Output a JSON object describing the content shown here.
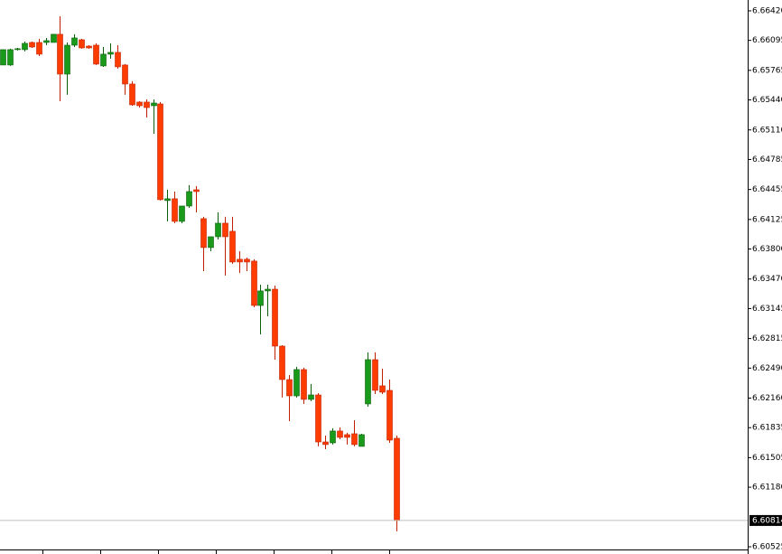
{
  "chart_data": {
    "type": "candlestick",
    "open": [
      6.65824,
      6.65824,
      6.65993,
      6.65993,
      6.66072,
      6.66072,
      6.66072,
      6.66072,
      6.66162,
      6.65724,
      6.66042,
      6.66102,
      6.66032,
      6.66042,
      6.65814,
      6.65943,
      6.65963,
      6.65824,
      6.65615,
      6.65416,
      6.65416,
      6.65376,
      6.65396,
      6.64333,
      6.64353,
      6.64104,
      6.64273,
      6.64452,
      6.64134,
      6.63816,
      6.63935,
      6.64084,
      6.63995,
      6.63687,
      6.63687,
      6.63667,
      6.63179,
      6.63339,
      6.63358,
      6.62732,
      6.62364,
      6.62185,
      6.62474,
      6.62146,
      6.62195,
      6.61678,
      6.61668,
      6.61798,
      6.61758,
      6.61768,
      6.61629,
      6.62096,
      6.62583,
      6.62295,
      6.62245,
      6.61718
    ],
    "high": [
      6.65993,
      6.66003,
      6.66012,
      6.66082,
      6.66082,
      6.66112,
      6.66122,
      6.66162,
      6.6636,
      6.66072,
      6.66162,
      6.66112,
      6.66042,
      6.66062,
      6.66022,
      6.66062,
      6.66042,
      6.65834,
      6.65645,
      6.65426,
      6.65446,
      6.65446,
      6.65416,
      6.64452,
      6.64432,
      6.64273,
      6.64502,
      6.64492,
      6.64154,
      6.63935,
      6.64203,
      6.64154,
      6.64154,
      6.63776,
      6.63706,
      6.63687,
      6.63408,
      6.63408,
      6.63398,
      6.62742,
      6.62414,
      6.62504,
      6.62494,
      6.62315,
      6.62215,
      6.61748,
      6.61828,
      6.61838,
      6.61778,
      6.61917,
      6.61768,
      6.62663,
      6.62663,
      6.62484,
      6.62364,
      6.61748
    ],
    "low": [
      6.65824,
      6.65814,
      6.65983,
      6.65973,
      6.66012,
      6.65923,
      6.66042,
      6.66072,
      6.65426,
      6.65496,
      6.66022,
      6.66003,
      6.66003,
      6.65824,
      6.65804,
      6.65893,
      6.65784,
      6.65496,
      6.65376,
      6.65356,
      6.65247,
      6.65068,
      6.64333,
      6.64104,
      6.64084,
      6.64084,
      6.64253,
      6.64203,
      6.63557,
      6.63776,
      6.63905,
      6.63508,
      6.63637,
      6.63537,
      6.63557,
      6.63159,
      6.62861,
      6.6306,
      6.62583,
      6.62166,
      6.61907,
      6.62166,
      6.62096,
      6.62126,
      6.61629,
      6.61599,
      6.61649,
      6.61708,
      6.61649,
      6.61629,
      6.61629,
      6.62066,
      6.62205,
      6.62205,
      6.61668,
      6.60695
    ],
    "close": [
      6.65993,
      6.65993,
      6.66003,
      6.66062,
      6.66022,
      6.65943,
      6.66092,
      6.66162,
      6.65724,
      6.66042,
      6.66122,
      6.66012,
      6.66012,
      6.65834,
      6.65943,
      6.65963,
      6.65804,
      6.65615,
      6.65386,
      6.65376,
      6.65356,
      6.65406,
      6.64343,
      6.64353,
      6.64104,
      6.64273,
      6.64432,
      6.64432,
      6.63816,
      6.63935,
      6.64084,
      6.63935,
      6.63657,
      6.63657,
      6.63657,
      6.63179,
      6.63339,
      6.63358,
      6.62732,
      6.62364,
      6.62185,
      6.62474,
      6.62146,
      6.62195,
      6.61678,
      6.61649,
      6.61798,
      6.61728,
      6.61728,
      6.61649,
      6.61758,
      6.62583,
      6.62245,
      6.62225,
      6.61698,
      6.60814
    ],
    "up_color": "#1a9a1a",
    "down_color": "#ff3c00",
    "ylim": [
      6.60495,
      6.66539
    ],
    "yticks": [
      {
        "value": 6.6642,
        "label": "6.66420"
      },
      6.66095,
      6.65765,
      {
        "value": 6.6544,
        "label": "6.65440"
      },
      {
        "value": 6.6511,
        "label": "6.65110"
      },
      6.64785,
      6.64455,
      6.64125,
      {
        "value": 6.638,
        "label": "6.63800"
      },
      {
        "value": 6.6347,
        "label": "6.63470"
      },
      6.63145,
      6.62815,
      {
        "value": 6.6249,
        "label": "6.62490"
      },
      {
        "value": 6.6216,
        "label": "6.62160"
      },
      6.61835,
      6.61505,
      {
        "value": 6.6118,
        "label": "6.61180"
      },
      6.60525
    ],
    "last_price": 6.60814
  }
}
